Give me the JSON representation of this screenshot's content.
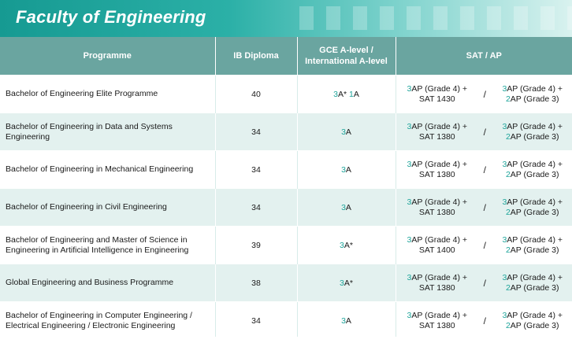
{
  "banner": {
    "title": "Faculty of Engineering"
  },
  "headers": {
    "programme": "Programme",
    "ib": "IB Diploma",
    "gce_line1": "GCE A-level /",
    "gce_line2": "International A-level",
    "sat": "SAT / AP"
  },
  "rows": [
    {
      "programme_lines": [
        "Bachelor of Engineering Elite Programme"
      ],
      "ib": "40",
      "gce": [
        {
          "n": "3",
          "t": "A* "
        },
        {
          "n": "1",
          "t": "A"
        }
      ],
      "sat_left": {
        "n": "3",
        "l1": "AP (Grade 4) +",
        "l2": "SAT 1430"
      },
      "sat_right": {
        "n1": "3",
        "l1": "AP (Grade 4) +",
        "n2": "2",
        "l2": "AP (Grade 3)"
      }
    },
    {
      "programme_lines": [
        "Bachelor of Engineering in Data and Systems",
        "Engineering"
      ],
      "ib": "34",
      "gce": [
        {
          "n": "3",
          "t": "A"
        }
      ],
      "sat_left": {
        "n": "3",
        "l1": "AP (Grade 4) +",
        "l2": "SAT 1380"
      },
      "sat_right": {
        "n1": "3",
        "l1": "AP (Grade 4) +",
        "n2": "2",
        "l2": "AP (Grade 3)"
      }
    },
    {
      "programme_lines": [
        "Bachelor of Engineering in Mechanical Engineering"
      ],
      "ib": "34",
      "gce": [
        {
          "n": "3",
          "t": "A"
        }
      ],
      "sat_left": {
        "n": "3",
        "l1": "AP (Grade 4) +",
        "l2": "SAT 1380"
      },
      "sat_right": {
        "n1": "3",
        "l1": "AP (Grade 4) +",
        "n2": "2",
        "l2": "AP (Grade 3)"
      }
    },
    {
      "programme_lines": [
        "Bachelor of Engineering in Civil Engineering"
      ],
      "ib": "34",
      "gce": [
        {
          "n": "3",
          "t": "A"
        }
      ],
      "sat_left": {
        "n": "3",
        "l1": "AP (Grade 4) +",
        "l2": "SAT 1380"
      },
      "sat_right": {
        "n1": "3",
        "l1": "AP (Grade 4) +",
        "n2": "2",
        "l2": "AP (Grade 3)"
      }
    },
    {
      "programme_lines": [
        "Bachelor of Engineering and Master of Science in",
        "Engineering in Artificial Intelligence in Engineering"
      ],
      "ib": "39",
      "gce": [
        {
          "n": "3",
          "t": "A*"
        }
      ],
      "sat_left": {
        "n": "3",
        "l1": "AP (Grade 4) +",
        "l2": "SAT 1400"
      },
      "sat_right": {
        "n1": "3",
        "l1": "AP (Grade 4) +",
        "n2": "2",
        "l2": "AP (Grade 3)"
      }
    },
    {
      "programme_lines": [
        "Global Engineering and Business Programme"
      ],
      "ib": "38",
      "gce": [
        {
          "n": "3",
          "t": "A*"
        }
      ],
      "sat_left": {
        "n": "3",
        "l1": "AP (Grade 4) +",
        "l2": "SAT 1380"
      },
      "sat_right": {
        "n1": "3",
        "l1": "AP (Grade 4) +",
        "n2": "2",
        "l2": "AP (Grade 3)"
      }
    },
    {
      "programme_lines": [
        "Bachelor of Engineering in Computer Engineering /",
        "Electrical Engineering / Electronic Engineering"
      ],
      "ib": "34",
      "gce": [
        {
          "n": "3",
          "t": "A"
        }
      ],
      "sat_left": {
        "n": "3",
        "l1": "AP (Grade 4) +",
        "l2": "SAT 1380"
      },
      "sat_right": {
        "n1": "3",
        "l1": "AP (Grade 4) +",
        "n2": "2",
        "l2": "AP (Grade 3)"
      }
    }
  ],
  "separator": "/",
  "colors": {
    "header": "#6aa5a0",
    "accent": "#1ea49a",
    "alt_row": "#e3f1ef"
  }
}
